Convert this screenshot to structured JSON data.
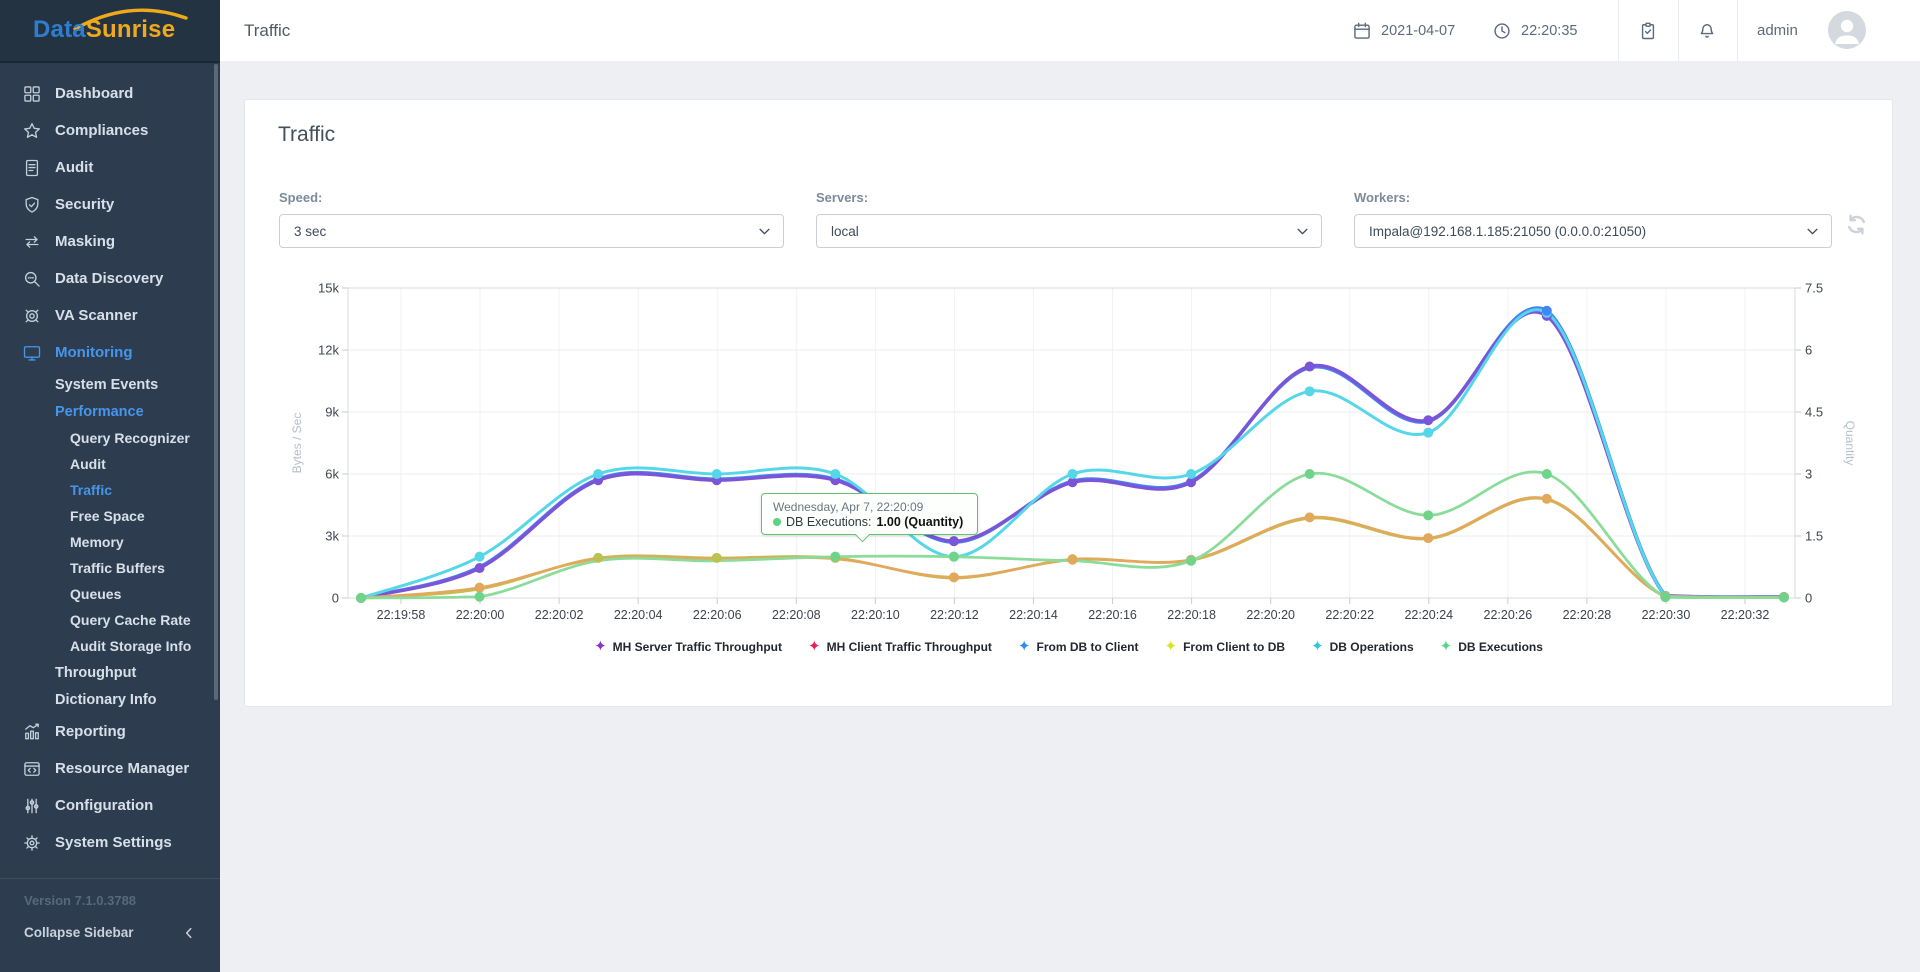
{
  "sidebar": {
    "logo": {
      "part1": "Data",
      "part2": "Sunrise"
    },
    "version": "Version 7.1.0.3788",
    "collapse_label": "Collapse Sidebar",
    "items": [
      {
        "label": "Dashboard",
        "icon": "dashboard-icon",
        "level": 0,
        "active": false
      },
      {
        "label": "Compliances",
        "icon": "star-icon",
        "level": 0,
        "active": false
      },
      {
        "label": "Audit",
        "icon": "document-icon",
        "level": 0,
        "active": false
      },
      {
        "label": "Security",
        "icon": "shield-icon",
        "level": 0,
        "active": false
      },
      {
        "label": "Masking",
        "icon": "masking-icon",
        "level": 0,
        "active": false
      },
      {
        "label": "Data Discovery",
        "icon": "search-icon",
        "level": 0,
        "active": false
      },
      {
        "label": "VA Scanner",
        "icon": "scanner-icon",
        "level": 0,
        "active": false
      },
      {
        "label": "Monitoring",
        "icon": "monitor-icon",
        "level": 0,
        "active": true
      },
      {
        "label": "System Events",
        "level": 1,
        "active": false
      },
      {
        "label": "Performance",
        "level": 1,
        "active": true
      },
      {
        "label": "Query Recognizer",
        "level": 2,
        "active": false
      },
      {
        "label": "Audit",
        "level": 2,
        "active": false
      },
      {
        "label": "Traffic",
        "level": 2,
        "active": true
      },
      {
        "label": "Free Space",
        "level": 2,
        "active": false
      },
      {
        "label": "Memory",
        "level": 2,
        "active": false
      },
      {
        "label": "Traffic Buffers",
        "level": 2,
        "active": false
      },
      {
        "label": "Queues",
        "level": 2,
        "active": false
      },
      {
        "label": "Query Cache Rate",
        "level": 2,
        "active": false
      },
      {
        "label": "Audit Storage Info",
        "level": 2,
        "active": false
      },
      {
        "label": "Throughput",
        "level": 1,
        "active": false
      },
      {
        "label": "Dictionary Info",
        "level": 1,
        "active": false
      },
      {
        "label": "Reporting",
        "icon": "reporting-icon",
        "level": 0,
        "active": false
      },
      {
        "label": "Resource Manager",
        "icon": "resource-icon",
        "level": 0,
        "active": false
      },
      {
        "label": "Configuration",
        "icon": "sliders-icon",
        "level": 0,
        "active": false
      },
      {
        "label": "System Settings",
        "icon": "gear-icon",
        "level": 0,
        "active": false
      }
    ]
  },
  "header": {
    "title": "Traffic",
    "date": "2021-04-07",
    "time": "22:20:35",
    "user": "admin"
  },
  "panel": {
    "title": "Traffic",
    "filters": [
      {
        "label": "Speed:",
        "value": "3 sec"
      },
      {
        "label": "Servers:",
        "value": "local"
      },
      {
        "label": "Workers:",
        "value": "Impala@192.168.1.185:21050 (0.0.0.0:21050)"
      }
    ]
  },
  "tooltip": {
    "date_line": "Wednesday, Apr 7, 22:20:09",
    "series_label": "DB Executions:",
    "value": "1.00 (Quantity)",
    "dot_color": "#5dd27f"
  },
  "chart_data": {
    "type": "line",
    "x_tick_labels": [
      "22:19:58",
      "22:20:00",
      "22:20:02",
      "22:20:04",
      "22:20:06",
      "22:20:08",
      "22:20:10",
      "22:20:12",
      "22:20:14",
      "22:20:16",
      "22:20:18",
      "22:20:20",
      "22:20:22",
      "22:20:24",
      "22:20:26",
      "22:20:28",
      "22:20:30",
      "22:20:32"
    ],
    "point_times": [
      "22:19:57",
      "22:20:00",
      "22:20:03",
      "22:20:06",
      "22:20:09",
      "22:20:12",
      "22:20:15",
      "22:20:18",
      "22:20:21",
      "22:20:24",
      "22:20:27",
      "22:20:30",
      "22:20:33"
    ],
    "left_axis": {
      "title": "Bytes / Sec",
      "max": 15000,
      "ticks": [
        "15k",
        "12k",
        "9k",
        "6k",
        "3k",
        "0"
      ]
    },
    "right_axis": {
      "title": "Quantity",
      "max": 7.5,
      "ticks": [
        "7.5",
        "6",
        "4.5",
        "3",
        "1.5",
        "0"
      ]
    },
    "series": [
      {
        "name": "MH Server Traffic Throughput",
        "axis": "left",
        "legend_color": "#8832d6",
        "line_color": "#7a55d8",
        "width": 3.5,
        "values": [
          0,
          1450,
          5700,
          5700,
          5700,
          2750,
          5600,
          5600,
          11200,
          8600,
          13650,
          100,
          50
        ],
        "dots": [
          0,
          1,
          2,
          3,
          4,
          5,
          6,
          7,
          8,
          9,
          10,
          11,
          12
        ]
      },
      {
        "name": "MH Client Traffic Throughput",
        "axis": "left",
        "legend_color": "#e5234e",
        "line_color": "#e2a85c",
        "width": 2.75,
        "values": [
          0,
          500,
          1900,
          1900,
          1900,
          1000,
          1850,
          1850,
          3900,
          2900,
          4800,
          80,
          40
        ],
        "dots": [
          0,
          1,
          5,
          6,
          7,
          8,
          9,
          10,
          11,
          12
        ]
      },
      {
        "name": "From DB to Client",
        "axis": "left",
        "legend_color": "#2e8bf0",
        "line_color": "#4186f5",
        "width": 3.5,
        "values": [
          0,
          1500,
          5750,
          5750,
          5750,
          2700,
          5650,
          5650,
          11150,
          8550,
          13900,
          120,
          60
        ],
        "dots": [
          10
        ]
      },
      {
        "name": "From Client to DB",
        "axis": "left",
        "legend_color": "#d9e21f",
        "line_color": "#bcc24f",
        "width": 2.5,
        "values": [
          0,
          430,
          1940,
          1940,
          1940,
          960,
          1880,
          1820,
          3850,
          2860,
          4760,
          60,
          30
        ],
        "dots": [
          2,
          3,
          4,
          6
        ]
      },
      {
        "name": "DB Operations",
        "axis": "right",
        "legend_color": "#29c8e0",
        "line_color": "#55d7e8",
        "width": 3,
        "values": [
          0,
          1,
          3,
          3,
          3,
          1,
          3,
          3,
          5,
          4,
          6.9,
          0.05,
          0.02
        ],
        "dots": [
          0,
          1,
          2,
          3,
          4,
          5,
          6,
          7,
          8,
          9,
          10,
          11,
          12
        ]
      },
      {
        "name": "DB Executions",
        "axis": "right",
        "legend_color": "#52d889",
        "line_color": "#8bdc9a",
        "dot_color": "#6fd489",
        "width": 2.75,
        "values": [
          0,
          0.03,
          0.9,
          0.9,
          1,
          1,
          0.9,
          0.9,
          3,
          2,
          3,
          0.02,
          0.01
        ],
        "dots": [
          0,
          1,
          4,
          5,
          7,
          8,
          9,
          10,
          11,
          12
        ]
      }
    ],
    "line_draw_order": [
      2,
      0,
      4,
      3,
      1,
      5
    ],
    "dot_draw_order": [
      0,
      4,
      3,
      1,
      5,
      2
    ]
  }
}
